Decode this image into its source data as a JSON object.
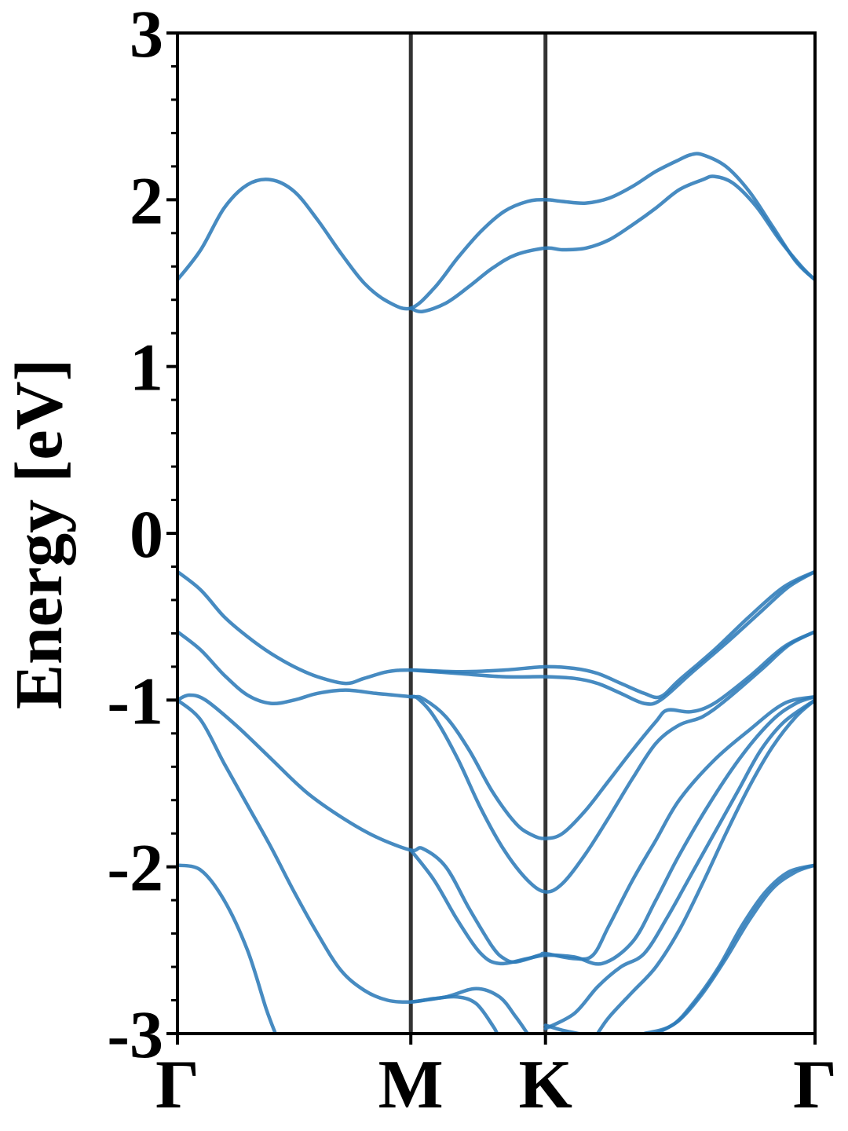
{
  "chart_data": {
    "type": "line",
    "title": "",
    "xlabel": "",
    "ylabel": "Energy [eV]",
    "ylim": [
      -3,
      3
    ],
    "xlim": [
      0,
      2.732
    ],
    "y_ticks": [
      3,
      2,
      1,
      0,
      -1,
      -2,
      -3
    ],
    "y_tick_labels": [
      "3",
      "2",
      "1",
      "0",
      "-1",
      "-2",
      "-3"
    ],
    "high_symmetry_points": [
      {
        "label": "Γ",
        "x": 0.0
      },
      {
        "label": "M",
        "x": 1.0
      },
      {
        "label": "K",
        "x": 1.577
      },
      {
        "label": "Γ",
        "x": 2.732
      }
    ],
    "grid": false,
    "legend": "none",
    "colors": {
      "band": "#2e7bb8",
      "kline": "#333333",
      "axis": "#000000"
    },
    "series": [
      {
        "values": [
          [
            0.0,
            1.52
          ],
          [
            0.1,
            1.7
          ],
          [
            0.2,
            1.95
          ],
          [
            0.3,
            2.09
          ],
          [
            0.4,
            2.12
          ],
          [
            0.5,
            2.05
          ],
          [
            0.6,
            1.88
          ],
          [
            0.7,
            1.68
          ],
          [
            0.8,
            1.5
          ],
          [
            0.9,
            1.39
          ],
          [
            1.0,
            1.35
          ],
          [
            1.1,
            1.47
          ],
          [
            1.2,
            1.65
          ],
          [
            1.3,
            1.81
          ],
          [
            1.4,
            1.93
          ],
          [
            1.5,
            1.99
          ],
          [
            1.577,
            2.0
          ],
          [
            1.65,
            1.99
          ],
          [
            1.75,
            1.98
          ],
          [
            1.85,
            2.01
          ],
          [
            1.95,
            2.08
          ],
          [
            2.05,
            2.17
          ],
          [
            2.15,
            2.24
          ],
          [
            2.2,
            2.27
          ],
          [
            2.25,
            2.27
          ],
          [
            2.35,
            2.2
          ],
          [
            2.45,
            2.05
          ],
          [
            2.55,
            1.84
          ],
          [
            2.65,
            1.63
          ],
          [
            2.732,
            1.52
          ]
        ]
      },
      {
        "values": [
          [
            1.0,
            1.35
          ],
          [
            1.05,
            1.33
          ],
          [
            1.15,
            1.38
          ],
          [
            1.25,
            1.48
          ],
          [
            1.35,
            1.59
          ],
          [
            1.45,
            1.67
          ],
          [
            1.577,
            1.71
          ],
          [
            1.65,
            1.7
          ],
          [
            1.75,
            1.71
          ],
          [
            1.85,
            1.76
          ],
          [
            1.95,
            1.85
          ],
          [
            2.05,
            1.95
          ],
          [
            2.15,
            2.06
          ],
          [
            2.25,
            2.12
          ],
          [
            2.3,
            2.14
          ],
          [
            2.38,
            2.1
          ],
          [
            2.48,
            1.96
          ],
          [
            2.58,
            1.76
          ],
          [
            2.68,
            1.59
          ],
          [
            2.732,
            1.52
          ]
        ]
      },
      {
        "values": [
          [
            0.0,
            -0.23
          ],
          [
            0.1,
            -0.34
          ],
          [
            0.2,
            -0.5
          ],
          [
            0.3,
            -0.62
          ],
          [
            0.4,
            -0.72
          ],
          [
            0.5,
            -0.8
          ],
          [
            0.6,
            -0.86
          ],
          [
            0.72,
            -0.9
          ],
          [
            0.8,
            -0.87
          ],
          [
            0.9,
            -0.83
          ],
          [
            1.0,
            -0.82
          ],
          [
            1.2,
            -0.83
          ],
          [
            1.4,
            -0.82
          ],
          [
            1.577,
            -0.8
          ],
          [
            1.7,
            -0.81
          ],
          [
            1.8,
            -0.84
          ],
          [
            1.9,
            -0.9
          ],
          [
            2.0,
            -0.96
          ],
          [
            2.07,
            -0.98
          ],
          [
            2.15,
            -0.88
          ],
          [
            2.3,
            -0.7
          ],
          [
            2.45,
            -0.5
          ],
          [
            2.6,
            -0.32
          ],
          [
            2.732,
            -0.23
          ]
        ]
      },
      {
        "values": [
          [
            1.0,
            -0.82
          ],
          [
            1.2,
            -0.84
          ],
          [
            1.4,
            -0.86
          ],
          [
            1.577,
            -0.86
          ],
          [
            1.7,
            -0.87
          ],
          [
            1.8,
            -0.9
          ],
          [
            1.9,
            -0.96
          ],
          [
            2.0,
            -1.02
          ],
          [
            2.07,
            -1.0
          ],
          [
            2.2,
            -0.84
          ],
          [
            2.35,
            -0.66
          ],
          [
            2.5,
            -0.47
          ],
          [
            2.62,
            -0.32
          ],
          [
            2.732,
            -0.23
          ]
        ]
      },
      {
        "values": [
          [
            0.0,
            -0.59
          ],
          [
            0.1,
            -0.7
          ],
          [
            0.2,
            -0.85
          ],
          [
            0.3,
            -0.97
          ],
          [
            0.4,
            -1.02
          ],
          [
            0.5,
            -1.0
          ],
          [
            0.6,
            -0.96
          ],
          [
            0.72,
            -0.94
          ],
          [
            0.85,
            -0.96
          ],
          [
            1.0,
            -0.98
          ],
          [
            1.05,
            -0.99
          ],
          [
            1.15,
            -1.1
          ],
          [
            1.25,
            -1.3
          ],
          [
            1.35,
            -1.55
          ],
          [
            1.45,
            -1.74
          ],
          [
            1.52,
            -1.81
          ],
          [
            1.577,
            -1.83
          ],
          [
            1.65,
            -1.8
          ],
          [
            1.75,
            -1.66
          ],
          [
            1.85,
            -1.48
          ],
          [
            1.95,
            -1.3
          ],
          [
            2.05,
            -1.13
          ],
          [
            2.1,
            -1.06
          ],
          [
            2.2,
            -1.07
          ],
          [
            2.3,
            -1.02
          ],
          [
            2.45,
            -0.86
          ],
          [
            2.6,
            -0.68
          ],
          [
            2.732,
            -0.59
          ]
        ]
      },
      {
        "values": [
          [
            1.0,
            -0.98
          ],
          [
            1.03,
            -0.99
          ],
          [
            1.1,
            -1.1
          ],
          [
            1.2,
            -1.35
          ],
          [
            1.3,
            -1.65
          ],
          [
            1.4,
            -1.9
          ],
          [
            1.5,
            -2.08
          ],
          [
            1.577,
            -2.15
          ],
          [
            1.65,
            -2.1
          ],
          [
            1.75,
            -1.92
          ],
          [
            1.85,
            -1.7
          ],
          [
            1.95,
            -1.47
          ],
          [
            2.05,
            -1.26
          ],
          [
            2.15,
            -1.15
          ],
          [
            2.25,
            -1.1
          ],
          [
            2.35,
            -1.0
          ],
          [
            2.5,
            -0.82
          ],
          [
            2.62,
            -0.67
          ],
          [
            2.732,
            -0.59
          ]
        ]
      },
      {
        "values": [
          [
            0.0,
            -1.0
          ],
          [
            0.05,
            -0.97
          ],
          [
            0.12,
            -1.0
          ],
          [
            0.25,
            -1.15
          ],
          [
            0.4,
            -1.35
          ],
          [
            0.55,
            -1.55
          ],
          [
            0.7,
            -1.7
          ],
          [
            0.85,
            -1.82
          ],
          [
            1.0,
            -1.9
          ],
          [
            1.05,
            -1.89
          ],
          [
            1.15,
            -2.0
          ],
          [
            1.25,
            -2.25
          ],
          [
            1.35,
            -2.48
          ],
          [
            1.4,
            -2.55
          ],
          [
            1.45,
            -2.57
          ],
          [
            1.55,
            -2.53
          ],
          [
            1.577,
            -2.52
          ],
          [
            1.7,
            -2.55
          ],
          [
            1.78,
            -2.53
          ],
          [
            1.85,
            -2.35
          ],
          [
            1.95,
            -2.08
          ],
          [
            2.05,
            -1.84
          ],
          [
            2.15,
            -1.6
          ],
          [
            2.3,
            -1.36
          ],
          [
            2.45,
            -1.18
          ],
          [
            2.6,
            -1.02
          ],
          [
            2.732,
            -0.98
          ]
        ]
      },
      {
        "values": [
          [
            0.0,
            -1.0
          ],
          [
            0.1,
            -1.12
          ],
          [
            0.2,
            -1.38
          ],
          [
            0.3,
            -1.63
          ],
          [
            0.4,
            -1.88
          ],
          [
            0.5,
            -2.15
          ],
          [
            0.6,
            -2.4
          ],
          [
            0.7,
            -2.62
          ],
          [
            0.8,
            -2.74
          ],
          [
            0.9,
            -2.8
          ],
          [
            1.0,
            -2.81
          ],
          [
            1.1,
            -2.79
          ],
          [
            1.2,
            -2.78
          ],
          [
            1.28,
            -2.82
          ],
          [
            1.35,
            -2.95
          ],
          [
            1.37,
            -3.0
          ]
        ]
      },
      {
        "values": [
          [
            1.0,
            -1.9
          ],
          [
            1.1,
            -2.08
          ],
          [
            1.2,
            -2.32
          ],
          [
            1.3,
            -2.52
          ],
          [
            1.38,
            -2.58
          ],
          [
            1.5,
            -2.55
          ],
          [
            1.577,
            -2.53
          ],
          [
            1.7,
            -2.54
          ],
          [
            1.82,
            -2.58
          ],
          [
            1.95,
            -2.45
          ],
          [
            2.05,
            -2.2
          ],
          [
            2.15,
            -1.93
          ],
          [
            2.28,
            -1.62
          ],
          [
            2.42,
            -1.33
          ],
          [
            2.55,
            -1.12
          ],
          [
            2.65,
            -1.02
          ],
          [
            2.732,
            -0.98
          ]
        ]
      },
      {
        "values": [
          [
            0.0,
            -1.99
          ],
          [
            0.1,
            -2.02
          ],
          [
            0.2,
            -2.2
          ],
          [
            0.3,
            -2.5
          ],
          [
            0.38,
            -2.85
          ],
          [
            0.42,
            -3.0
          ]
        ]
      },
      {
        "values": [
          [
            1.0,
            -2.81
          ],
          [
            1.15,
            -2.78
          ],
          [
            1.28,
            -2.73
          ],
          [
            1.38,
            -2.78
          ],
          [
            1.45,
            -2.9
          ],
          [
            1.5,
            -3.0
          ]
        ]
      },
      {
        "values": [
          [
            1.577,
            -2.97
          ],
          [
            1.7,
            -2.88
          ],
          [
            1.8,
            -2.72
          ],
          [
            1.9,
            -2.6
          ],
          [
            2.0,
            -2.52
          ],
          [
            2.1,
            -2.3
          ],
          [
            2.2,
            -2.05
          ],
          [
            2.3,
            -1.8
          ],
          [
            2.4,
            -1.55
          ],
          [
            2.5,
            -1.3
          ],
          [
            2.6,
            -1.13
          ],
          [
            2.732,
            -1.0
          ]
        ]
      },
      {
        "values": [
          [
            1.577,
            -2.95
          ],
          [
            1.65,
            -2.98
          ],
          [
            1.72,
            -3.0
          ]
        ]
      },
      {
        "values": [
          [
            1.8,
            -3.0
          ],
          [
            1.85,
            -2.9
          ],
          [
            1.95,
            -2.75
          ],
          [
            2.05,
            -2.6
          ],
          [
            2.15,
            -2.38
          ],
          [
            2.25,
            -2.1
          ],
          [
            2.35,
            -1.8
          ],
          [
            2.45,
            -1.52
          ],
          [
            2.55,
            -1.28
          ],
          [
            2.65,
            -1.1
          ],
          [
            2.732,
            -1.0
          ]
        ]
      },
      {
        "values": [
          [
            2.0,
            -3.0
          ],
          [
            2.12,
            -2.95
          ],
          [
            2.22,
            -2.8
          ],
          [
            2.32,
            -2.6
          ],
          [
            2.42,
            -2.35
          ],
          [
            2.52,
            -2.15
          ],
          [
            2.62,
            -2.03
          ],
          [
            2.732,
            -1.99
          ]
        ]
      },
      {
        "values": [
          [
            2.05,
            -3.0
          ],
          [
            2.15,
            -2.92
          ],
          [
            2.25,
            -2.76
          ],
          [
            2.35,
            -2.55
          ],
          [
            2.45,
            -2.32
          ],
          [
            2.55,
            -2.13
          ],
          [
            2.65,
            -2.03
          ],
          [
            2.732,
            -1.99
          ]
        ]
      }
    ]
  }
}
